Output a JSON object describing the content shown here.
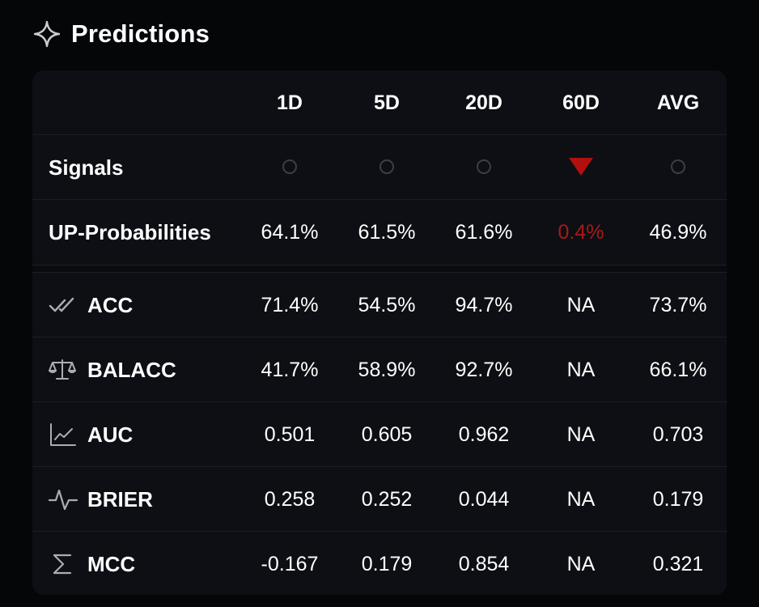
{
  "header": {
    "title": "Predictions",
    "icon": "sparkle-icon"
  },
  "columns": [
    "1D",
    "5D",
    "20D",
    "60D",
    "AVG"
  ],
  "signals": {
    "label": "Signals",
    "values": [
      {
        "type": "neutral-circle"
      },
      {
        "type": "neutral-circle"
      },
      {
        "type": "neutral-circle"
      },
      {
        "type": "down-triangle",
        "color": "#b01010"
      },
      {
        "type": "neutral-circle"
      }
    ]
  },
  "up_probabilities": {
    "label": "UP-Probabilities",
    "values": [
      "64.1%",
      "61.5%",
      "61.6%",
      "0.4%",
      "46.9%"
    ],
    "negative_color": "#a81a1a"
  },
  "metrics": [
    {
      "icon": "double-check-icon",
      "label": "ACC",
      "values": [
        "71.4%",
        "54.5%",
        "94.7%",
        "NA",
        "73.7%"
      ]
    },
    {
      "icon": "scale-icon",
      "label": "BALACC",
      "values": [
        "41.7%",
        "58.9%",
        "92.7%",
        "NA",
        "66.1%"
      ]
    },
    {
      "icon": "line-chart-icon",
      "label": "AUC",
      "values": [
        "0.501",
        "0.605",
        "0.962",
        "NA",
        "0.703"
      ]
    },
    {
      "icon": "pulse-icon",
      "label": "BRIER",
      "values": [
        "0.258",
        "0.252",
        "0.044",
        "NA",
        "0.179"
      ]
    },
    {
      "icon": "sigma-icon",
      "label": "MCC",
      "values": [
        "-0.167",
        "0.179",
        "0.854",
        "NA",
        "0.321"
      ]
    }
  ],
  "colors": {
    "background": "#050608",
    "card": "#0d0f14",
    "divider": "#1b1e25",
    "negative": "#a81a1a",
    "signal_down": "#b01010"
  }
}
